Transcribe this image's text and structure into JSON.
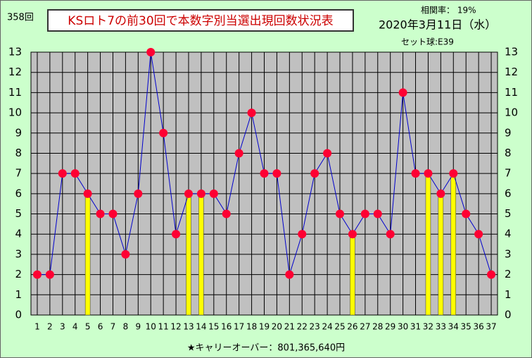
{
  "chart_data": {
    "type": "line",
    "title": "KSロト7の前30回で本数字別当選出現回数状況表",
    "draw_number": "358回",
    "correlation": "相関率： 19%",
    "date": "2020年3月11日（水）",
    "set_ball": "セット球:E39",
    "carryover": "★キャリーオーバー：801,365,640円",
    "categories": [
      "1",
      "2",
      "3",
      "4",
      "5",
      "6",
      "7",
      "8",
      "9",
      "10",
      "11",
      "12",
      "13",
      "14",
      "15",
      "16",
      "17",
      "18",
      "19",
      "20",
      "21",
      "22",
      "23",
      "24",
      "25",
      "26",
      "27",
      "28",
      "29",
      "30",
      "31",
      "32",
      "33",
      "34",
      "35",
      "36",
      "37"
    ],
    "series": [
      {
        "type": "line",
        "color": "#0000cc",
        "marker_color": "#ff0033",
        "values": [
          2,
          2,
          7,
          7,
          6,
          5,
          5,
          3,
          6,
          13,
          9,
          4,
          6,
          6,
          6,
          5,
          8,
          10,
          7,
          7,
          2,
          4,
          7,
          8,
          5,
          4,
          5,
          5,
          4,
          11,
          7,
          7,
          6,
          7,
          5,
          4,
          2
        ]
      },
      {
        "type": "bar",
        "color": "#ffff00",
        "values": [
          null,
          null,
          null,
          null,
          6,
          null,
          null,
          null,
          null,
          null,
          null,
          null,
          6,
          6,
          null,
          null,
          null,
          null,
          null,
          null,
          null,
          null,
          null,
          null,
          null,
          4,
          null,
          null,
          null,
          null,
          null,
          7,
          6,
          7,
          null,
          null,
          null
        ]
      }
    ],
    "ylim": [
      0,
      13
    ],
    "yticks": [
      0,
      1,
      2,
      3,
      4,
      5,
      6,
      7,
      8,
      9,
      10,
      11,
      12,
      13
    ],
    "y2lim": [
      0,
      13
    ],
    "y2ticks": [
      0,
      1,
      2,
      3,
      4,
      5,
      6,
      7,
      8,
      9,
      10,
      11,
      12,
      13
    ],
    "grid": true
  }
}
